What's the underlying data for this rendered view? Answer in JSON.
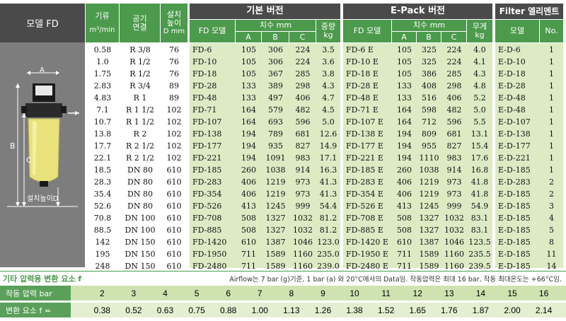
{
  "headers": {
    "model_fd": "모델 FD",
    "flow": [
      "기류",
      "m³/min"
    ],
    "connection": [
      "공기",
      "연결"
    ],
    "install_height": [
      "설치",
      "높이",
      "D mm"
    ],
    "basic_version": "기본 버전",
    "epack_version": "E-Pack 버전",
    "filter_element": "Filter 엘리멘트",
    "fd_model": "FD 모델",
    "dims": "치수 mm",
    "weight_basic": [
      "중량",
      "kg"
    ],
    "weight_epack": [
      "무게",
      "kg"
    ],
    "a": "A",
    "b": "B",
    "c": "C",
    "model": "모델",
    "no": "No."
  },
  "diagram": {
    "label_a": "A",
    "label_b": "B",
    "label_c": "C",
    "install_label": "설치높이D"
  },
  "rows": [
    [
      "0.58",
      "R 3/8",
      "76",
      "FD-6",
      "105",
      "306",
      "224",
      "3.5",
      "FD-6 E",
      "105",
      "325",
      "224",
      "4.0",
      "E-D-6",
      "1"
    ],
    [
      "1.0",
      "R 1/2",
      "76",
      "FD-10",
      "105",
      "306",
      "224",
      "3.6",
      "FD-10 E",
      "105",
      "325",
      "224",
      "4.1",
      "E-D-10",
      "1"
    ],
    [
      "1.75",
      "R 1/2",
      "76",
      "FD-18",
      "105",
      "367",
      "285",
      "3.8",
      "FD-18 E",
      "105",
      "386",
      "285",
      "4.3",
      "E-D-18",
      "1"
    ],
    [
      "2.83",
      "R 3/4",
      "89",
      "FD-28",
      "133",
      "389",
      "298",
      "4.3",
      "FD-28 E",
      "133",
      "408",
      "298",
      "4.8",
      "E-D-28",
      "1"
    ],
    [
      "4.83",
      "R 1",
      "89",
      "FD-48",
      "133",
      "497",
      "406",
      "4.7",
      "FD-48 E",
      "133",
      "516",
      "406",
      "5.2",
      "E-D-48",
      "1"
    ],
    [
      "7.1",
      "R 1 1/2",
      "102",
      "FD-71",
      "164",
      "579",
      "482",
      "4.5",
      "FD-71 E",
      "164",
      "598",
      "482",
      "5.0",
      "E-D-48",
      "1"
    ],
    [
      "10.7",
      "R 1 1/2",
      "102",
      "FD-107",
      "164",
      "693",
      "596",
      "5.0",
      "FD-107 E",
      "164",
      "712",
      "596",
      "5.5",
      "E-D-107",
      "1"
    ],
    [
      "13.8",
      "R 2",
      "102",
      "FD-138",
      "194",
      "789",
      "681",
      "12.6",
      "FD-138 E",
      "194",
      "809",
      "681",
      "13.1",
      "E-D-138",
      "1"
    ],
    [
      "17.7",
      "R 2 1/2",
      "102",
      "FD-177",
      "194",
      "935",
      "827",
      "14.9",
      "FD-177 E",
      "194",
      "955",
      "827",
      "15.4",
      "E-D-177",
      "1"
    ],
    [
      "22.1",
      "R 2 1/2",
      "102",
      "FD-221",
      "194",
      "1091",
      "983",
      "17.1",
      "FD-221 E",
      "194",
      "1110",
      "983",
      "17.6",
      "E-D-221",
      "1"
    ],
    [
      "18.5",
      "DN 80",
      "610",
      "FD-185",
      "260",
      "1038",
      "914",
      "16.3",
      "FD-185 E",
      "260",
      "1038",
      "914",
      "16.8",
      "E-D-185",
      "1"
    ],
    [
      "28.3",
      "DN 80",
      "610",
      "FD-283",
      "406",
      "1219",
      "973",
      "41.3",
      "FD-283 E",
      "406",
      "1219",
      "973",
      "41.8",
      "E-D-283",
      "2"
    ],
    [
      "35.4",
      "DN 80",
      "610",
      "FD-354",
      "406",
      "1219",
      "973",
      "41.3",
      "FD-354 E",
      "406",
      "1219",
      "973",
      "41.8",
      "E-D-185",
      "2"
    ],
    [
      "52.6",
      "DN 80",
      "610",
      "FD-526",
      "413",
      "1245",
      "999",
      "54.4",
      "FD-526 E",
      "413",
      "1245",
      "999",
      "54.9",
      "E-D-185",
      "3"
    ],
    [
      "70.8",
      "DN 100",
      "610",
      "FD-708",
      "508",
      "1327",
      "1032",
      "81.2",
      "FD-708 E",
      "508",
      "1327",
      "1032",
      "83.1",
      "E-D-185",
      "4"
    ],
    [
      "88.5",
      "DN 100",
      "610",
      "FD-885",
      "508",
      "1327",
      "1032",
      "81.2",
      "FD-885 E",
      "508",
      "1327",
      "1032",
      "83.1",
      "E-D-185",
      "5"
    ],
    [
      "142",
      "DN 150",
      "610",
      "FD-1420",
      "610",
      "1387",
      "1046",
      "123.0",
      "FD-1420 E",
      "610",
      "1387",
      "1046",
      "123.5",
      "E-D-185",
      "8"
    ],
    [
      "195",
      "DN 150",
      "610",
      "FD-1950",
      "711",
      "1589",
      "1160",
      "235.0",
      "FD-1950 E",
      "711",
      "1589",
      "1160",
      "235.5",
      "E-D-185",
      "11"
    ],
    [
      "248",
      "DN 150",
      "610",
      "FD-2480",
      "711",
      "1589",
      "1160",
      "239.0",
      "FD-2480 E",
      "711",
      "1589",
      "1160",
      "239.5",
      "E-D-185",
      "14"
    ]
  ],
  "footer": {
    "title": "기타 압력용 변환 요소 f",
    "note": "Airflow는 7 bar (g)기준, 1 bar (a) 와 20°C에서의 Data임. 작동압력은 최대 16 bar, 작동 최대온도는 +66°C임.",
    "pressure_label": "작동 압력 bar",
    "factor_label": "변환 요소 f =",
    "pressures": [
      "2",
      "3",
      "4",
      "5",
      "6",
      "7",
      "8",
      "9",
      "10",
      "11",
      "12",
      "13",
      "14",
      "15",
      "16"
    ],
    "factors": [
      "0.38",
      "0.52",
      "0.63",
      "0.75",
      "0.88",
      "1.00",
      "1.13",
      "1.26",
      "1.38",
      "1.52",
      "1.65",
      "1.76",
      "1.87",
      "2.00",
      "2.14"
    ]
  },
  "colors": {
    "green_header": "#4c9a4c",
    "dark_header": "#4a4a4a",
    "body_green": "#dcebc4"
  }
}
